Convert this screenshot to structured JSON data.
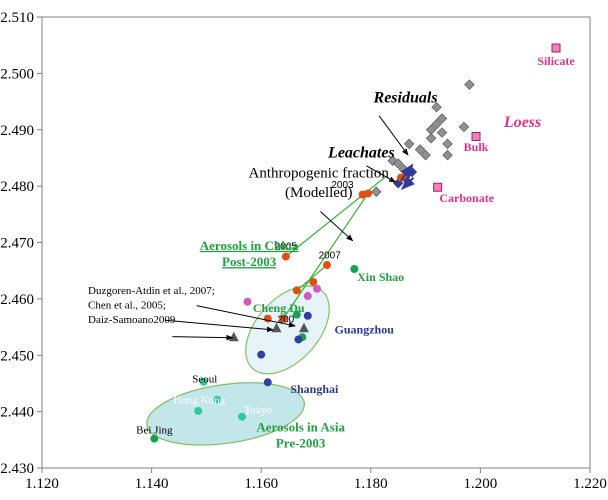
{
  "chart_data": {
    "type": "scatter",
    "xlim": [
      1.12,
      1.22
    ],
    "ylim": [
      2.43,
      2.51
    ],
    "xticks": [
      "1.120",
      "1.140",
      "1.160",
      "1.180",
      "1.200",
      "1.220"
    ],
    "yticks": [
      "2.430",
      "2.440",
      "2.450",
      "2.460",
      "2.470",
      "2.480",
      "2.490",
      "2.500",
      "2.510"
    ],
    "grid": false,
    "colors": {
      "residual": "#909090",
      "leachate": "#2d3a9a",
      "loess": "#f080b8",
      "china_post2003": "#e05010",
      "green_point": "#18a050",
      "blue_point": "#3040a0",
      "magenta_point": "#d058c0",
      "asia_pre2003": "#30c8a0",
      "literature": "#505858",
      "ellipse_stroke": "#80c060",
      "line_green": "#30b030",
      "label_green": "#20a040",
      "label_blue": "#2a3a90",
      "label_magenta": "#e0308a"
    },
    "series": [
      {
        "values": [
          [
            1.198,
            2.498
          ],
          [
            1.192,
            2.494
          ],
          [
            1.193,
            2.492
          ],
          [
            1.192,
            2.491
          ],
          [
            1.191,
            2.49
          ],
          [
            1.197,
            2.4905
          ],
          [
            1.193,
            2.4895
          ],
          [
            1.191,
            2.4885
          ],
          [
            1.187,
            2.4875
          ],
          [
            1.189,
            2.4865
          ],
          [
            1.194,
            2.4875
          ],
          [
            1.19,
            2.4855
          ],
          [
            1.194,
            2.4855
          ],
          [
            1.184,
            2.4845
          ],
          [
            1.185,
            2.484
          ],
          [
            1.186,
            2.483
          ],
          [
            1.181,
            2.479
          ]
        ]
      },
      {
        "values": [
          [
            1.185,
            2.4805
          ],
          [
            1.1862,
            2.4815
          ],
          [
            1.1875,
            2.4825
          ]
        ]
      },
      {
        "values": [
          [
            1.2138,
            2.5045
          ],
          [
            1.1992,
            2.4888
          ],
          [
            1.1922,
            2.4798
          ]
        ]
      },
      {
        "values": [
          [
            1.1795,
            2.4787
          ],
          [
            1.1785,
            2.4785
          ],
          [
            1.1645,
            2.4675
          ],
          [
            1.1855,
            2.4815
          ],
          [
            1.1865,
            2.482
          ],
          [
            1.172,
            2.466
          ],
          [
            1.1695,
            2.463
          ],
          [
            1.1665,
            2.4615
          ],
          [
            1.1612,
            2.4565
          ],
          [
            1.164,
            2.4565
          ]
        ]
      },
      {
        "values": [
          [
            1.177,
            2.4653
          ],
          [
            1.1665,
            2.4572
          ],
          [
            1.1675,
            2.4532
          ],
          [
            1.1405,
            2.4352
          ]
        ]
      },
      {
        "values": [
          [
            1.1685,
            2.457
          ],
          [
            1.1668,
            2.4528
          ],
          [
            1.16,
            2.4501
          ],
          [
            1.1612,
            2.4452
          ]
        ]
      },
      {
        "values": [
          [
            1.1575,
            2.4595
          ],
          [
            1.1685,
            2.4605
          ],
          [
            1.1702,
            2.4618
          ]
        ]
      },
      {
        "values": [
          [
            1.1495,
            2.4453
          ],
          [
            1.152,
            2.4421
          ],
          [
            1.1485,
            2.4401
          ],
          [
            1.1565,
            2.4391
          ]
        ]
      },
      {
        "values": [
          [
            1.155,
            2.4532
          ],
          [
            1.1628,
            2.4548
          ],
          [
            1.1678,
            2.4548
          ]
        ]
      }
    ],
    "lines": [
      {
        "values": [
          [
            1.164,
            2.4565
          ],
          [
            1.1795,
            2.4787
          ]
        ]
      },
      {
        "values": [
          [
            1.1645,
            2.4675
          ],
          [
            1.1825,
            2.4815
          ]
        ]
      },
      {
        "values": [
          [
            1.1665,
            2.4615
          ],
          [
            1.172,
            2.466
          ]
        ]
      }
    ],
    "arrows": [
      {
        "from": [
          1.1855,
          2.481
        ],
        "to": [
          1.1876,
          2.4838
        ]
      },
      {
        "from": [
          1.1878,
          2.4815
        ],
        "to": [
          1.1857,
          2.4795
        ]
      }
    ],
    "ellipses": [
      {
        "center": [
          1.1648,
          2.4545
        ],
        "rx": 0.0095,
        "ry": 0.0055,
        "angle": -48,
        "fill": "#e2f2f8"
      },
      {
        "center": [
          1.1535,
          2.4396
        ],
        "rx": 0.0145,
        "ry": 0.0052,
        "angle": -8,
        "fill": "#b8e2e8"
      }
    ],
    "annotations": [
      {
        "lines": [
          "Residuals"
        ],
        "anchor": [
          1.1805,
          2.4948
        ],
        "align": "start",
        "style": "bold-italic",
        "color": "#000000",
        "size": 16,
        "font": "serif"
      },
      {
        "lines": [
          "Leachates"
        ],
        "anchor": [
          1.1722,
          2.4851
        ],
        "align": "start",
        "style": "bold-italic",
        "color": "#000000",
        "size": 16,
        "font": "serif"
      },
      {
        "lines": [
          "Anthropogenic fraction",
          "(Modelled)"
        ],
        "anchor": [
          1.1705,
          2.4815
        ],
        "align": "middle",
        "style": "normal",
        "color": "#000000",
        "size": 15,
        "font": "serif",
        "line_gap": 0.0034
      },
      {
        "lines": [
          "Silicate"
        ],
        "anchor": [
          1.2138,
          2.5015
        ],
        "align": "middle",
        "style": "bold",
        "color": "#e0308a",
        "size": 12,
        "font": "serif"
      },
      {
        "lines": [
          "Loess"
        ],
        "anchor": [
          1.2077,
          2.4905
        ],
        "align": "middle",
        "style": "bold-italic",
        "color": "#e0308a",
        "size": 16,
        "font": "serif"
      },
      {
        "lines": [
          "Bulk"
        ],
        "anchor": [
          1.1992,
          2.4862
        ],
        "align": "middle",
        "style": "bold",
        "color": "#e0308a",
        "size": 12,
        "font": "serif"
      },
      {
        "lines": [
          "Carbonate"
        ],
        "anchor": [
          1.1975,
          2.4772
        ],
        "align": "middle",
        "style": "bold",
        "color": "#e0308a",
        "size": 12,
        "font": "serif"
      },
      {
        "lines": [
          "2003"
        ],
        "anchor": [
          1.1728,
          2.4797
        ],
        "align": "start",
        "style": "normal",
        "color": "#000000",
        "size": 10,
        "font": "sans"
      },
      {
        "lines": [
          "2005"
        ],
        "anchor": [
          1.1645,
          2.4688
        ],
        "align": "middle",
        "style": "normal",
        "color": "#000000",
        "size": 10,
        "font": "sans"
      },
      {
        "lines": [
          "2007"
        ],
        "anchor": [
          1.1725,
          2.4672
        ],
        "align": "middle",
        "style": "normal",
        "color": "#000000",
        "size": 10,
        "font": "sans"
      },
      {
        "lines": [
          "200"
        ],
        "anchor": [
          1.1645,
          2.4558
        ],
        "align": "middle",
        "style": "normal",
        "color": "#000000",
        "size": 10,
        "font": "sans"
      },
      {
        "lines": [
          "Aerosols in China",
          "Post-2003"
        ],
        "anchor": [
          1.1578,
          2.4687
        ],
        "align": "middle",
        "style": "bold",
        "color": "#20a040",
        "size": 13,
        "font": "serif",
        "underline": true,
        "line_gap": 0.0029
      },
      {
        "lines": [
          "Xin Shao"
        ],
        "anchor": [
          1.1818,
          2.4632
        ],
        "align": "middle",
        "style": "bold",
        "color": "#20a040",
        "size": 12,
        "font": "serif"
      },
      {
        "lines": [
          "Cheng Du"
        ],
        "anchor": [
          1.1632,
          2.4577
        ],
        "align": "middle",
        "style": "bold",
        "color": "#20a040",
        "size": 12,
        "font": "serif"
      },
      {
        "lines": [
          "Guangzhou"
        ],
        "anchor": [
          1.1788,
          2.4539
        ],
        "align": "middle",
        "style": "bold",
        "color": "#2a3a90",
        "size": 12,
        "font": "serif"
      },
      {
        "lines": [
          "Shanghai"
        ],
        "anchor": [
          1.1697,
          2.4433
        ],
        "align": "middle",
        "style": "bold",
        "color": "#2a3a90",
        "size": 12,
        "font": "serif"
      },
      {
        "lines": [
          "Duzgoren-Atdin et al., 2007;",
          "Chen et al., 2005;",
          "Daiz-Samoano2009"
        ],
        "anchor": [
          1.1284,
          2.4609
        ],
        "align": "start",
        "style": "normal",
        "color": "#000000",
        "size": 11,
        "font": "serif",
        "line_gap": 0.0026
      },
      {
        "lines": [
          "Seoul"
        ],
        "anchor": [
          1.1497,
          2.4452
        ],
        "align": "middle",
        "style": "normal",
        "color": "#000000",
        "size": 11,
        "font": "serif"
      },
      {
        "lines": [
          "Hong Kong"
        ],
        "anchor": [
          1.1487,
          2.4414
        ],
        "align": "middle",
        "style": "normal",
        "color": "#ffffff",
        "size": 11,
        "font": "serif"
      },
      {
        "lines": [
          "Tokyo"
        ],
        "anchor": [
          1.1595,
          2.4397
        ],
        "align": "middle",
        "style": "normal",
        "color": "#ffffff",
        "size": 11,
        "font": "serif"
      },
      {
        "lines": [
          "Bei Jing"
        ],
        "anchor": [
          1.1405,
          2.4361
        ],
        "align": "middle",
        "style": "normal",
        "color": "#000000",
        "size": 11,
        "font": "serif"
      },
      {
        "lines": [
          "Aerosols in Asia",
          "Pre-2003"
        ],
        "anchor": [
          1.1672,
          2.4365
        ],
        "align": "middle",
        "style": "bold",
        "color": "#20a040",
        "size": 13,
        "font": "serif",
        "line_gap": 0.0029
      }
    ],
    "pointers": [
      {
        "from": [
          1.1815,
          2.4925
        ],
        "to": [
          1.1868,
          2.4855
        ]
      },
      {
        "from": [
          1.1792,
          2.4836
        ],
        "to": [
          1.1845,
          2.4807
        ]
      },
      {
        "from": [
          1.1708,
          2.4755
        ],
        "to": [
          1.1767,
          2.4703
        ]
      },
      {
        "from": [
          1.1482,
          2.4588
        ],
        "to": [
          1.1662,
          2.4552
        ]
      },
      {
        "from": [
          1.1425,
          2.4562
        ],
        "to": [
          1.1622,
          2.4545
        ]
      },
      {
        "from": [
          1.1438,
          2.4533
        ],
        "to": [
          1.1548,
          2.4531
        ]
      }
    ]
  }
}
